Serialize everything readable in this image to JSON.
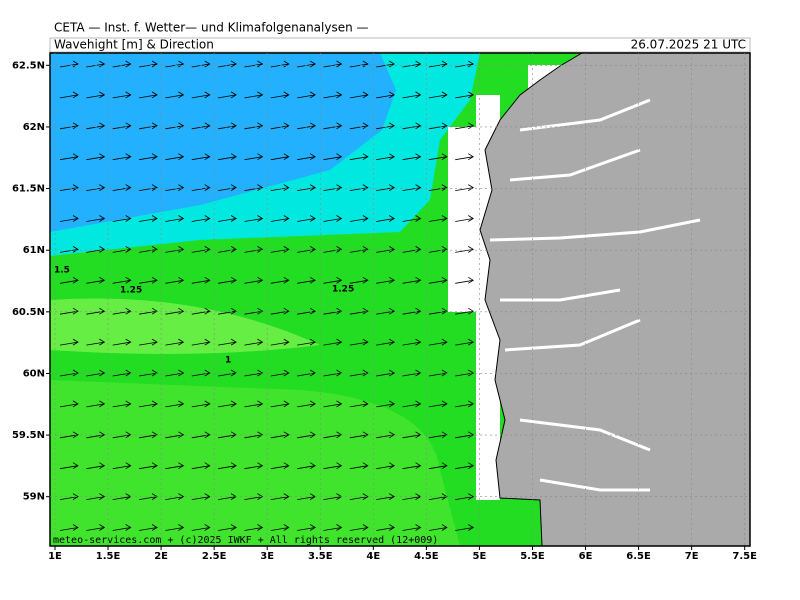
{
  "header": {
    "title": "CETA — Inst. f. Wetter— und Klimafolgenanalysen —",
    "subtitle": "Wavehight [m] & Direction",
    "date": "26.07.2025 21 UTC"
  },
  "x_axis": {
    "range": [
      0.953,
      7.55
    ],
    "ticks": [
      {
        "value": 1,
        "label": "1E"
      },
      {
        "value": 1.5,
        "label": "1.5E"
      },
      {
        "value": 2,
        "label": "2E"
      },
      {
        "value": 2.5,
        "label": "2.5E"
      },
      {
        "value": 3,
        "label": "3E"
      },
      {
        "value": 3.5,
        "label": "3.5E"
      },
      {
        "value": 4,
        "label": "4E"
      },
      {
        "value": 4.5,
        "label": "4.5E"
      },
      {
        "value": 5,
        "label": "5E"
      },
      {
        "value": 5.5,
        "label": "5.5E"
      },
      {
        "value": 6,
        "label": "6E"
      },
      {
        "value": 6.5,
        "label": "6.5E"
      },
      {
        "value": 7,
        "label": "7E"
      },
      {
        "value": 7.5,
        "label": "7.5E"
      }
    ]
  },
  "y_axis": {
    "range": [
      58.6,
      62.6
    ],
    "ticks": [
      {
        "value": 62.5,
        "label": "62.5N"
      },
      {
        "value": 62,
        "label": "62N"
      },
      {
        "value": 61.5,
        "label": "61.5N"
      },
      {
        "value": 61,
        "label": "61N"
      },
      {
        "value": 60.5,
        "label": "60.5N"
      },
      {
        "value": 60,
        "label": "60N"
      },
      {
        "value": 59.5,
        "label": "59.5N"
      },
      {
        "value": 59,
        "label": "59N"
      }
    ]
  },
  "contour_labels": [
    "1.5",
    "1.25",
    "1.25",
    "1"
  ],
  "footer": "meteo-services.com + (c)2025 IWKF + All rights reserved (12+009)"
}
